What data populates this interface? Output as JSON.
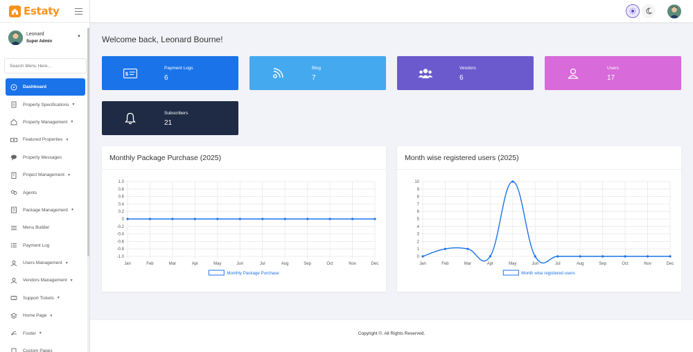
{
  "brand": {
    "name": "Estaty",
    "color": "#f7931e"
  },
  "user": {
    "name": "Leonard",
    "role": "Super Admin"
  },
  "search": {
    "placeholder": "Search Menu Here..."
  },
  "menu": [
    {
      "label": "Dashboard",
      "icon": "dashboard-icon",
      "active": true,
      "caret": false
    },
    {
      "label": "Property Specifications",
      "icon": "document-icon",
      "caret": true
    },
    {
      "label": "Property Management",
      "icon": "house-icon",
      "caret": true
    },
    {
      "label": "Featured Properties",
      "icon": "money-icon",
      "caret": true
    },
    {
      "label": "Property Messages",
      "icon": "chat-icon",
      "caret": false
    },
    {
      "label": "Project Management",
      "icon": "building-icon",
      "caret": true
    },
    {
      "label": "Agents",
      "icon": "agents-icon",
      "caret": false
    },
    {
      "label": "Package Management",
      "icon": "package-icon",
      "caret": true
    },
    {
      "label": "Menu Builder",
      "icon": "menu-icon",
      "caret": false
    },
    {
      "label": "Payment Log",
      "icon": "list-icon",
      "caret": false
    },
    {
      "label": "Users Management",
      "icon": "users-icon",
      "caret": true
    },
    {
      "label": "Vendors Management",
      "icon": "vendors-icon",
      "caret": true
    },
    {
      "label": "Support Tickets",
      "icon": "ticket-icon",
      "caret": true
    },
    {
      "label": "Home Page",
      "icon": "layers-icon",
      "caret": true
    },
    {
      "label": "Footer",
      "icon": "footer-icon",
      "caret": true
    },
    {
      "label": "Custom Pages",
      "icon": "page-icon",
      "caret": false
    }
  ],
  "welcome": "Welcome back, Leonard Bourne!",
  "cards": [
    {
      "label": "Payment Logs",
      "value": "6",
      "color": "#1a73e8",
      "icon": "payment-icon"
    },
    {
      "label": "Blog",
      "value": "7",
      "color": "#45a9f0",
      "icon": "rss-icon"
    },
    {
      "label": "Vendors",
      "value": "6",
      "color": "#6a5acd",
      "icon": "vendors-group-icon"
    },
    {
      "label": "Users",
      "value": "17",
      "color": "#d86ad9",
      "icon": "user-icon"
    },
    {
      "label": "Subscribers",
      "value": "21",
      "color": "#1f2a44",
      "icon": "bell-icon"
    }
  ],
  "charts": {
    "left_title": "Monthly Package Purchase (2025)",
    "right_title": "Month wise registered users (2025)"
  },
  "chart_data": [
    {
      "type": "line",
      "title": "Monthly Package Purchase (2025)",
      "categories": [
        "Jan",
        "Feb",
        "Mar",
        "Apr",
        "May",
        "Jun",
        "Jul",
        "Aug",
        "Sep",
        "Oct",
        "Nov",
        "Dec"
      ],
      "series": [
        {
          "name": "Monthly Package Purchase",
          "values": [
            0,
            0,
            0,
            0,
            0,
            0,
            0,
            0,
            0,
            0,
            0,
            0
          ]
        }
      ],
      "ylim": [
        -1.0,
        1.0
      ],
      "yticks": [
        "1.0",
        "0.8",
        "0.6",
        "0.4",
        "0.2",
        "0",
        "-0.2",
        "-0.4",
        "-0.6",
        "-0.8",
        "-1.0"
      ],
      "grid": true,
      "legend": "bottom",
      "color": "#1a73e8"
    },
    {
      "type": "line",
      "title": "Month wise registered users (2025)",
      "categories": [
        "Jan",
        "Feb",
        "Mar",
        "Apr",
        "May",
        "Jun",
        "Jul",
        "Aug",
        "Sep",
        "Oct",
        "Nov",
        "Dec"
      ],
      "series": [
        {
          "name": "Month wise registered users",
          "values": [
            0,
            1,
            1,
            0,
            10,
            0,
            0,
            0,
            0,
            0,
            0,
            0
          ]
        }
      ],
      "ylim": [
        0,
        10
      ],
      "yticks": [
        "10",
        "9",
        "8",
        "7",
        "6",
        "5",
        "4",
        "3",
        "2",
        "1",
        "0"
      ],
      "grid": true,
      "legend": "bottom",
      "color": "#1a73e8"
    }
  ],
  "footer": {
    "text": "Copyright ©. All Rights Reserved."
  }
}
